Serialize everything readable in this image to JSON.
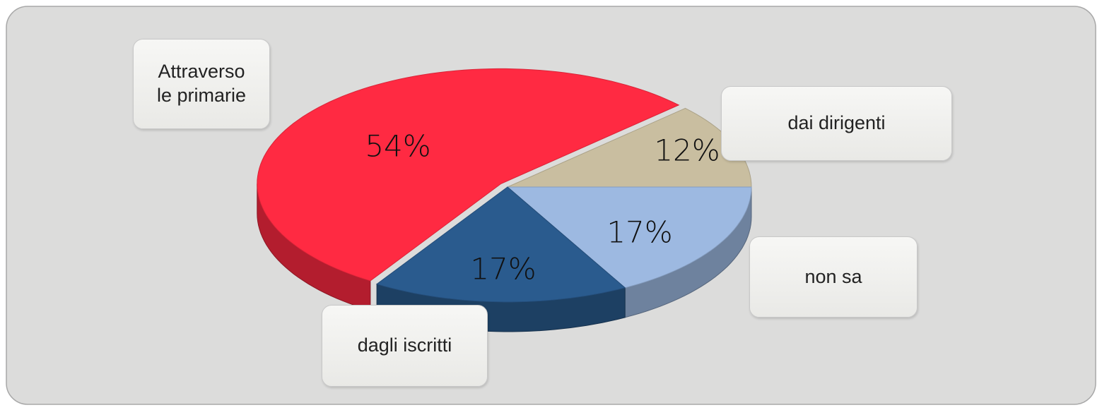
{
  "chart_data": {
    "type": "pie",
    "categories": [
      "Attraverso le primarie",
      "dai dirigenti",
      "non sa",
      "dagli iscritti"
    ],
    "values": [
      54,
      12,
      17,
      17
    ],
    "value_labels": [
      "54%",
      "12%",
      "17%",
      "17%"
    ],
    "colors": [
      "#ff2a42",
      "#c9bea0",
      "#9db9e1",
      "#2a5b8e"
    ]
  }
}
